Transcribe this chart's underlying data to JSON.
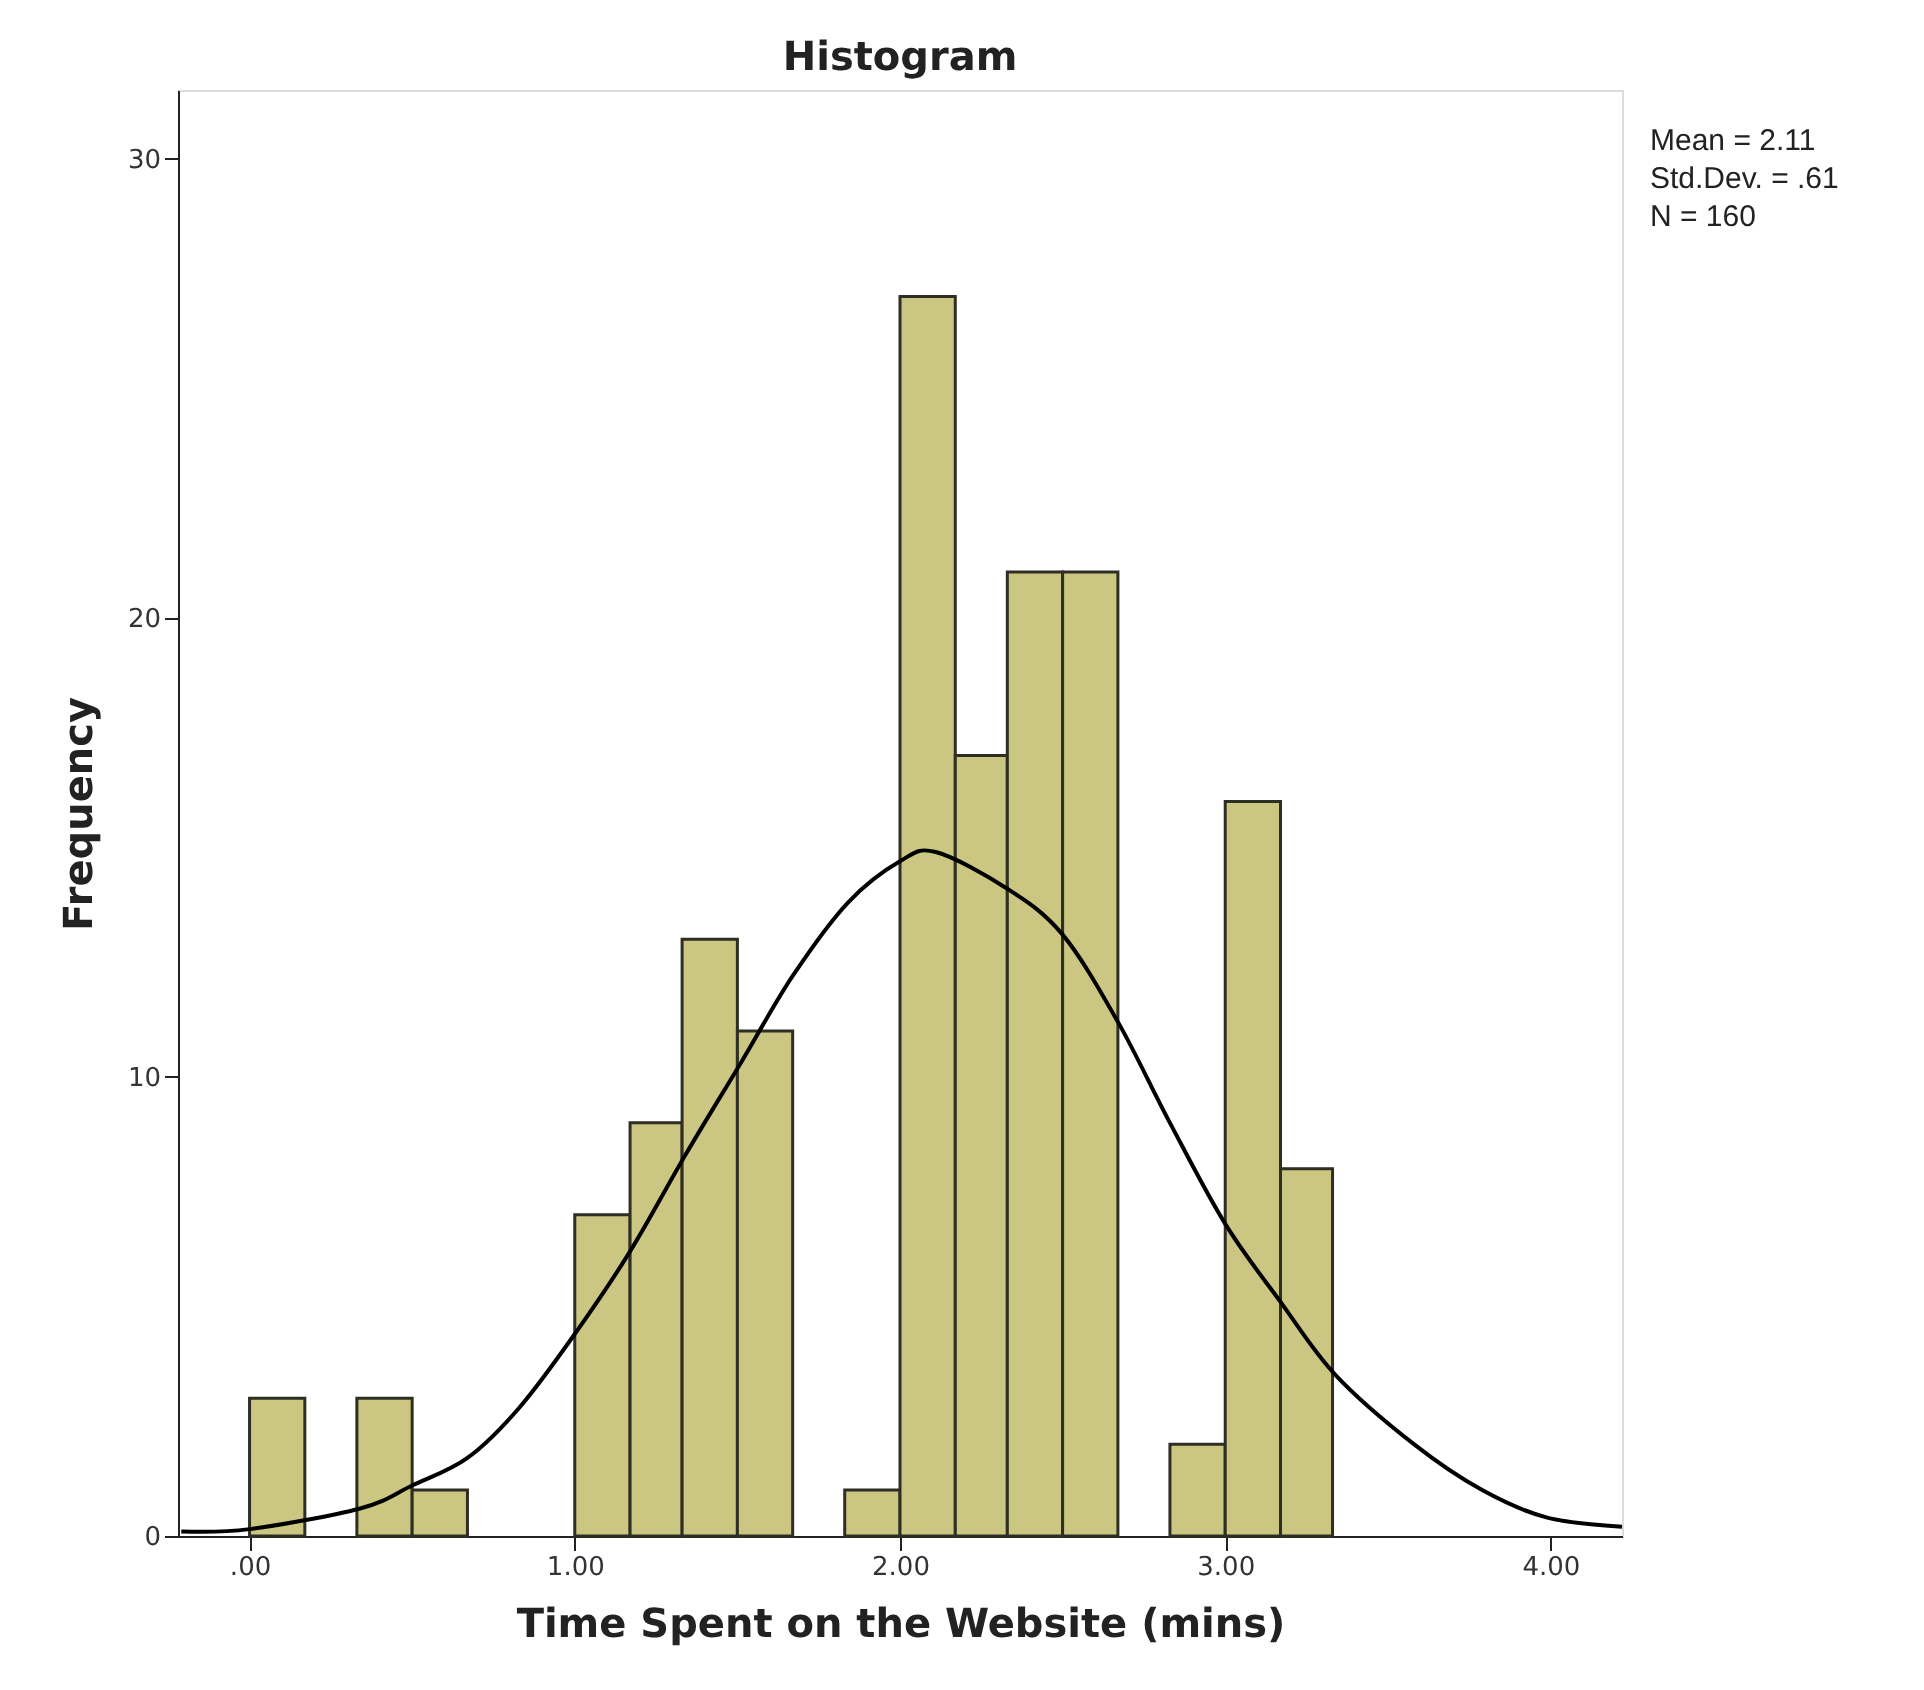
{
  "chart_data": {
    "type": "histogram",
    "title": "Histogram",
    "xlabel": "Time Spent on the Website (mins)",
    "ylabel": "Frequency",
    "bins": [
      0,
      0.17,
      0.33,
      0.5,
      0.67,
      1,
      1.17,
      1.33,
      1.5,
      1.67,
      1.83,
      2,
      2.17,
      2.33,
      2.5,
      2.67,
      2.83,
      3,
      3.17,
      3.33
    ],
    "values": [
      3,
      0,
      3,
      1,
      0,
      7,
      9,
      13,
      11,
      0,
      1,
      27,
      17,
      21,
      21,
      0,
      2,
      16,
      8
    ],
    "color": "#cbc682",
    "xlim": [
      -0.22,
      4.22
    ],
    "ylim": [
      0,
      31.5
    ],
    "xticks": [
      {
        "value": 0,
        "label": ".00"
      },
      {
        "value": 1,
        "label": "1.00"
      },
      {
        "value": 2,
        "label": "2.00"
      },
      {
        "value": 3,
        "label": "3.00"
      },
      {
        "value": 4,
        "label": "4.00"
      }
    ],
    "yticks": [
      0,
      10,
      20,
      30
    ],
    "grid": false,
    "annotations": [
      "Mean = 2.11",
      "Std.Dev. = .61",
      "N = 160"
    ],
    "series": [
      {
        "type": "line",
        "color": "#000000",
        "x": [
          -0.21,
          0,
          0.34,
          0.5,
          0.67,
          0.83,
          1,
          1.17,
          1.34,
          1.51,
          1.67,
          1.84,
          2,
          2.11,
          2.33,
          2.5,
          2.67,
          2.83,
          3,
          3.17,
          3.34,
          3.58,
          3.79,
          3.99,
          4.22
        ],
        "values": [
          0.1,
          0.15,
          0.6,
          1.1,
          1.7,
          2.8,
          4.4,
          6.2,
          8.3,
          10.3,
          12.2,
          13.8,
          14.7,
          14.9,
          14.1,
          13.1,
          11.2,
          9,
          6.8,
          5.1,
          3.5,
          2,
          1,
          0.4,
          0.2
        ]
      }
    ]
  }
}
